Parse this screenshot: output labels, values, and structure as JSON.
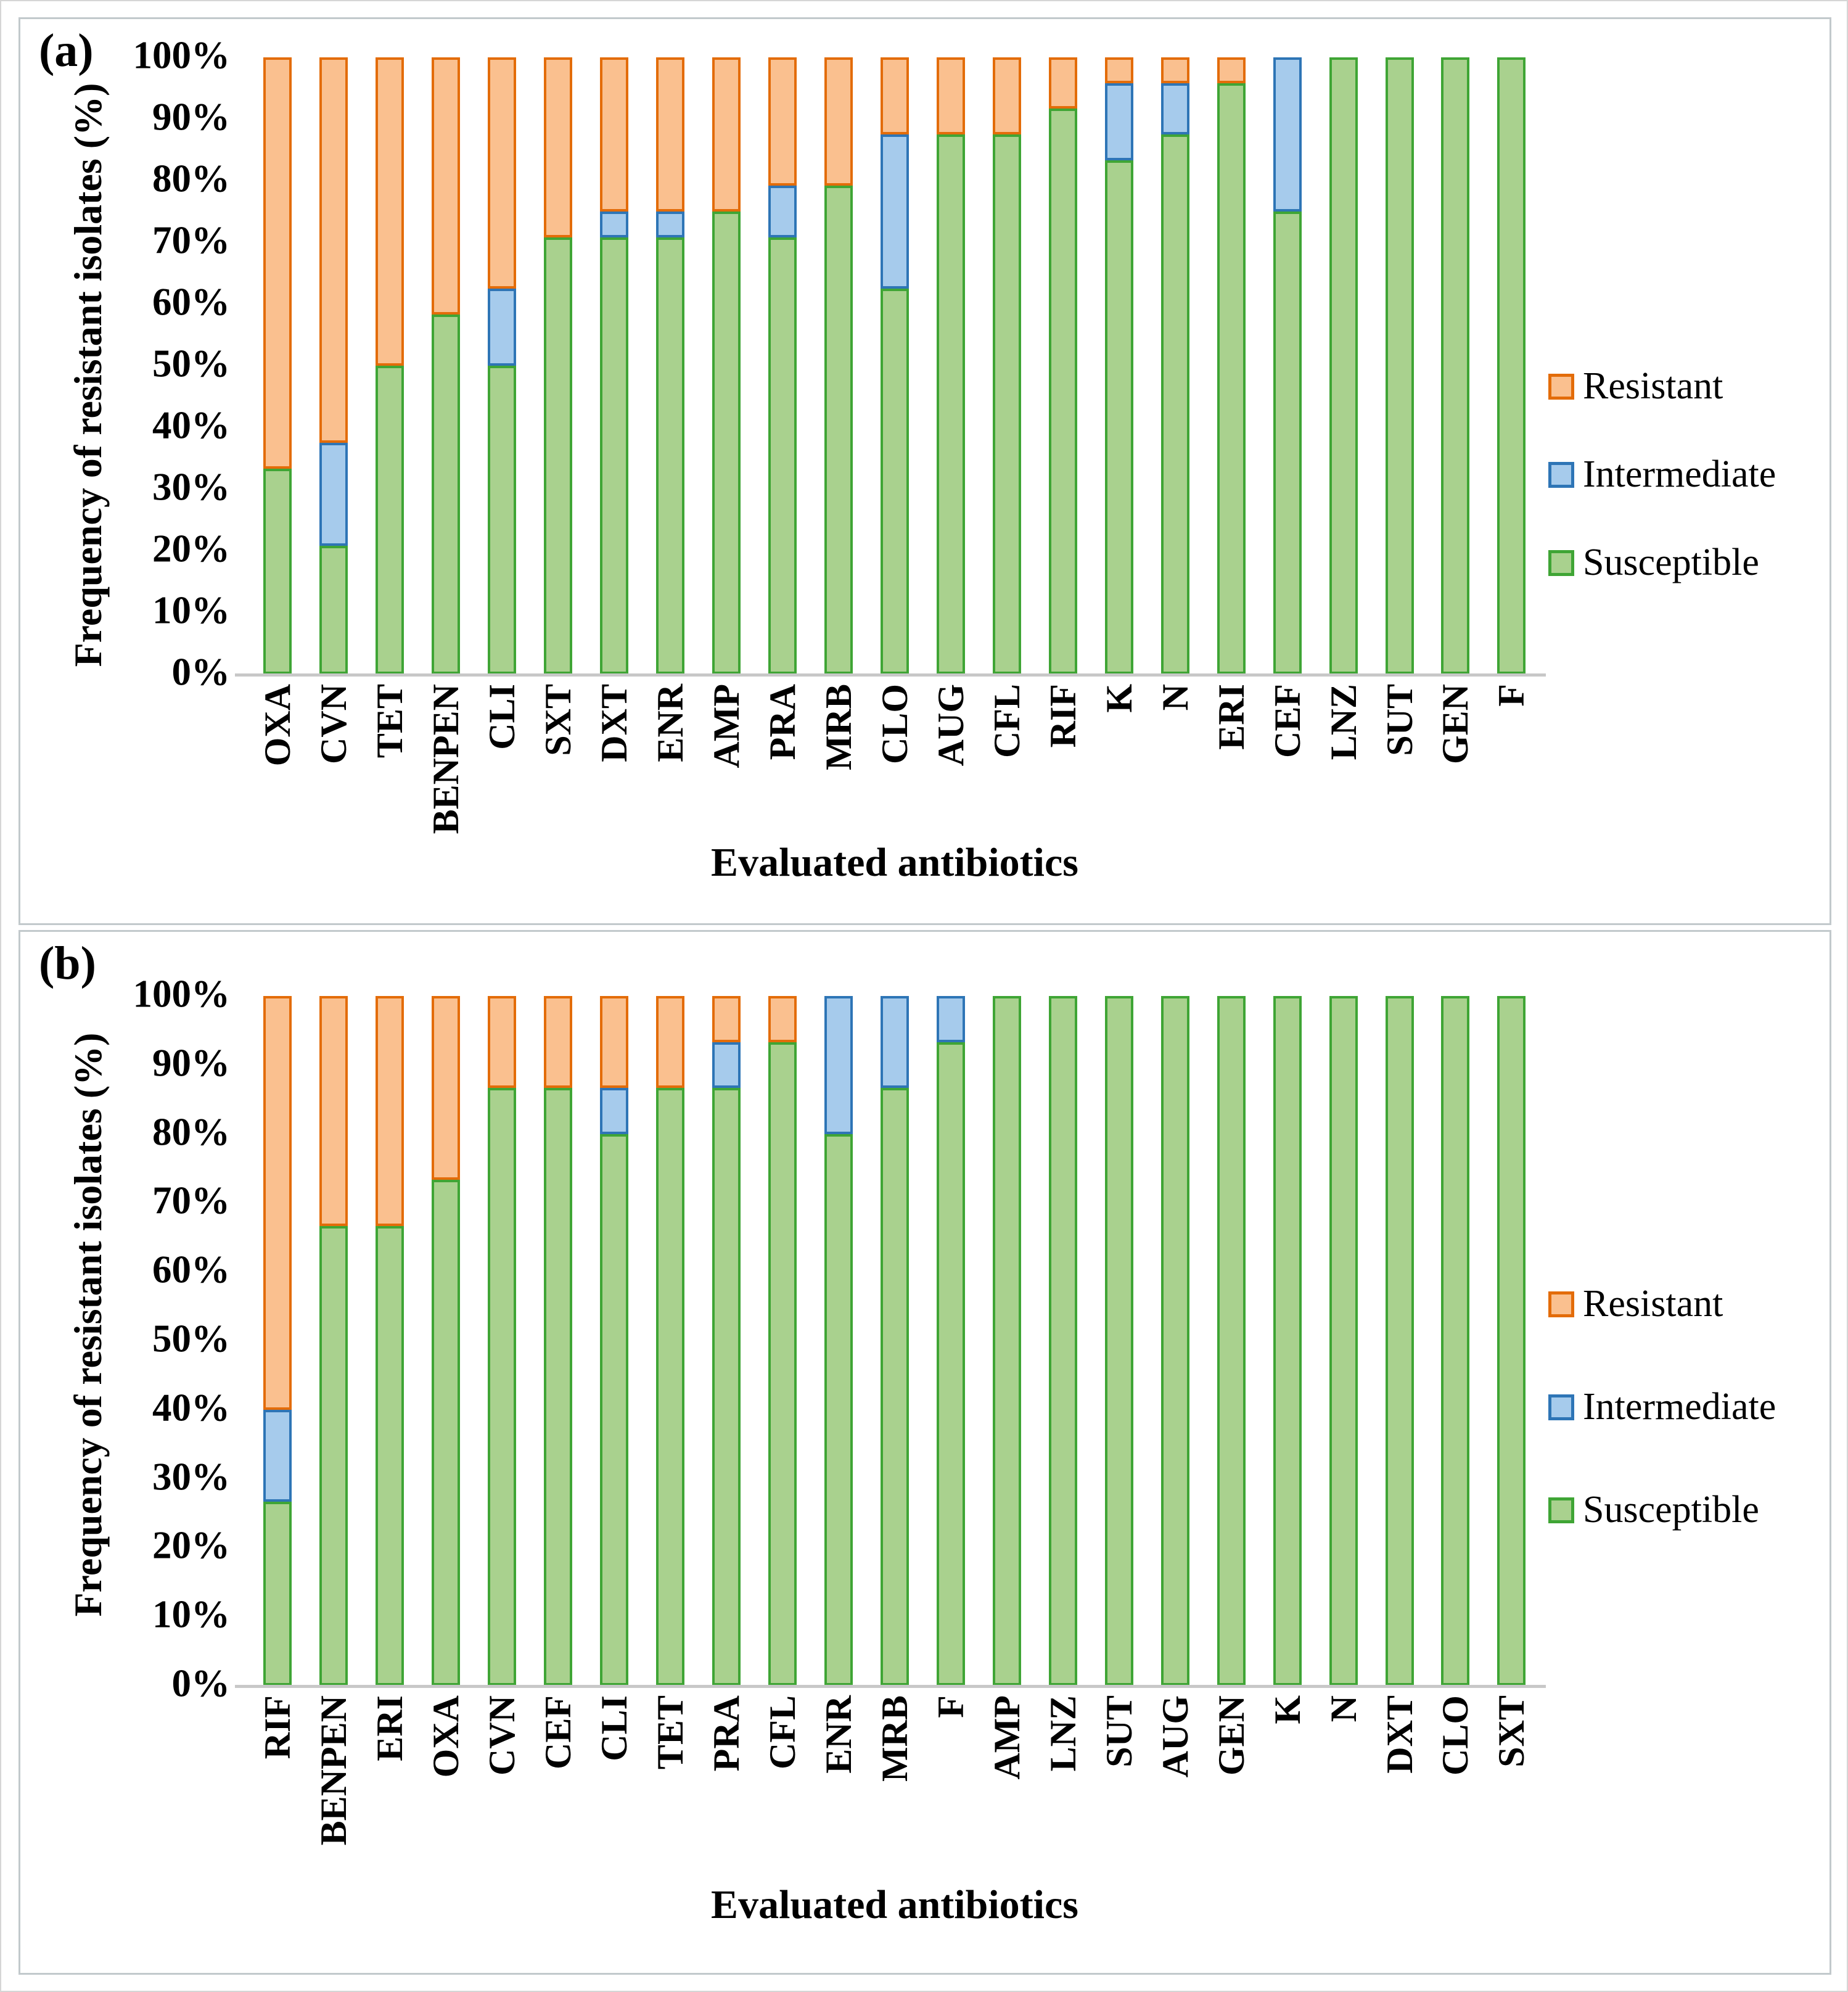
{
  "figure": {
    "background": "#ffffff",
    "legend_labels": [
      "Resistant",
      "Intermediate",
      "Susceptible"
    ],
    "colors": {
      "resistant_fill": "#FAC08F",
      "resistant_border": "#E36C09",
      "intermediate_fill": "#A6CBEC",
      "intermediate_border": "#2E75B6",
      "susceptible_fill": "#A9D18E",
      "susceptible_border": "#3FA535",
      "axis_line": "#C8C8C8",
      "text": "#000000"
    }
  },
  "chart_data": [
    {
      "type": "bar",
      "stacked": true,
      "panel_label": "(a)",
      "xlabel": "Evaluated antibiotics",
      "ylabel": "Frequency of resistant isolates (%)",
      "ylim": [
        0,
        100
      ],
      "ytick_labels": [
        "100%",
        "90%",
        "80%",
        "70%",
        "60%",
        "50%",
        "40%",
        "30%",
        "20%",
        "10%",
        "0%"
      ],
      "grid": false,
      "legend_position": "right",
      "categories": [
        "OXA",
        "CVN",
        "TET",
        "BENPEN",
        "CLI",
        "SXT",
        "DXT",
        "ENR",
        "AMP",
        "PRA",
        "MRB",
        "CLO",
        "AUG",
        "CFL",
        "RIF",
        "K",
        "N",
        "ERI",
        "CEF",
        "LNZ",
        "SUT",
        "GEN",
        "F"
      ],
      "series": [
        {
          "name": "Susceptible",
          "values": [
            33.33,
            20.83,
            50,
            58.33,
            50,
            70.83,
            70.83,
            70.83,
            75,
            70.83,
            79.17,
            62.5,
            87.5,
            87.5,
            91.67,
            83.33,
            87.5,
            95.83,
            75,
            100,
            100,
            100,
            100
          ]
        },
        {
          "name": "Intermediate",
          "values": [
            0,
            16.67,
            0,
            0,
            12.5,
            0,
            4.17,
            4.17,
            0,
            8.33,
            0,
            25,
            0,
            0,
            0,
            12.5,
            8.33,
            0,
            25,
            0,
            0,
            0,
            0
          ]
        },
        {
          "name": "Resistant",
          "values": [
            66.67,
            62.5,
            50,
            41.67,
            37.5,
            29.17,
            25,
            25,
            25,
            20.83,
            20.83,
            12.5,
            12.5,
            12.5,
            8.33,
            4.17,
            4.17,
            4.17,
            0,
            0,
            0,
            0,
            0
          ]
        }
      ]
    },
    {
      "type": "bar",
      "stacked": true,
      "panel_label": "(b)",
      "xlabel": "Evaluated antibiotics",
      "ylabel": "Frequency of resistant isolates (%)",
      "ylim": [
        0,
        100
      ],
      "ytick_labels": [
        "100%",
        "90%",
        "80%",
        "70%",
        "60%",
        "50%",
        "40%",
        "30%",
        "20%",
        "10%",
        "0%"
      ],
      "grid": false,
      "legend_position": "right",
      "categories": [
        "RIF",
        "BENPEN",
        "ERI",
        "OXA",
        "CVN",
        "CEF",
        "CLI",
        "TET",
        "PRA",
        "CFL",
        "ENR",
        "MRB",
        "F",
        "AMP",
        "LNZ",
        "SUT",
        "AUG",
        "GEN",
        "K",
        "N",
        "DXT",
        "CLO",
        "SXT"
      ],
      "series": [
        {
          "name": "Susceptible",
          "values": [
            26.67,
            66.67,
            66.67,
            73.33,
            86.67,
            86.67,
            80,
            86.67,
            86.67,
            93.33,
            80,
            86.67,
            93.33,
            100,
            100,
            100,
            100,
            100,
            100,
            100,
            100,
            100,
            100
          ]
        },
        {
          "name": "Intermediate",
          "values": [
            13.33,
            0,
            0,
            0,
            0,
            0,
            6.67,
            0,
            6.67,
            0,
            20,
            13.33,
            6.67,
            0,
            0,
            0,
            0,
            0,
            0,
            0,
            0,
            0,
            0
          ]
        },
        {
          "name": "Resistant",
          "values": [
            60,
            33.33,
            33.33,
            26.67,
            13.33,
            13.33,
            13.33,
            13.33,
            6.67,
            6.67,
            0,
            0,
            0,
            0,
            0,
            0,
            0,
            0,
            0,
            0,
            0,
            0,
            0
          ]
        }
      ]
    }
  ]
}
